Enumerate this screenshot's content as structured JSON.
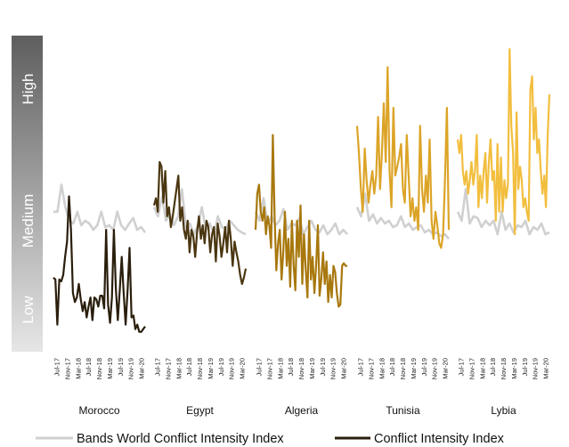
{
  "chart_data": {
    "type": "line",
    "bands": [
      "Low",
      "Medium",
      "High"
    ],
    "tick_labels": [
      "Jul-17",
      "Nov-17",
      "Mar-18",
      "Jul-18",
      "Nov-18",
      "Mar-19",
      "Jul-19",
      "Nov-19",
      "Mar-20"
    ],
    "colors": {
      "world": "#d0d0d0",
      "Morocco": "#2a1e0c",
      "Egypt": "#4a3610",
      "Algeria": "#a8780e",
      "Tunisia": "#dca427",
      "Lybia": "#f2be3e"
    },
    "legend": [
      {
        "label": "Bands World Conflict Intensity Index",
        "color": "#d0d0d0"
      },
      {
        "label": "Conflict Intensity Index",
        "color": "#2a1e0c"
      }
    ],
    "panels": [
      {
        "country": "Morocco",
        "world": [
          1.55,
          1.55,
          1.85,
          1.6,
          1.45,
          1.42,
          1.55,
          1.4,
          1.45,
          1.42,
          1.35,
          1.4,
          1.55,
          1.38,
          1.4,
          1.35,
          1.55,
          1.4,
          1.35,
          1.42,
          1.48,
          1.35,
          1.38,
          1.32
        ],
        "index": [
          0.82,
          0.8,
          0.3,
          0.8,
          0.78,
          0.85,
          1.05,
          1.22,
          1.72,
          1.35,
          0.65,
          0.55,
          0.6,
          0.75,
          0.58,
          0.45,
          0.55,
          0.38,
          0.5,
          0.6,
          0.35,
          0.6,
          0.58,
          0.5,
          0.62,
          0.62,
          0.48,
          1.35,
          0.52,
          0.32,
          0.6,
          1.35,
          0.7,
          0.35,
          0.68,
          1.05,
          0.65,
          0.3,
          0.68,
          1.15,
          0.38,
          0.4,
          0.25,
          0.3,
          0.22,
          0.22,
          0.25,
          0.28
        ]
      },
      {
        "country": "Egypt",
        "world": [
          1.6,
          1.5,
          1.72,
          1.45,
          1.52,
          1.4,
          1.5,
          1.8,
          1.38,
          1.42,
          1.3,
          1.4,
          1.6,
          1.35,
          1.42,
          1.3,
          1.5,
          1.38,
          1.36,
          1.45,
          1.4,
          1.35,
          1.32,
          1.3
        ],
        "index": [
          1.62,
          1.7,
          1.55,
          2.1,
          2.05,
          1.65,
          2.0,
          1.5,
          1.6,
          1.38,
          1.5,
          1.65,
          1.8,
          1.95,
          1.45,
          1.6,
          1.35,
          1.25,
          1.45,
          1.1,
          1.35,
          1.28,
          1.05,
          1.32,
          1.5,
          1.25,
          1.4,
          1.2,
          1.45,
          1.38,
          1.1,
          1.3,
          1.38,
          1.0,
          1.42,
          1.28,
          1.05,
          1.2,
          1.38,
          1.1,
          1.45,
          1.25,
          0.95,
          1.22,
          1.1,
          1.0,
          0.85,
          0.75,
          0.82,
          0.92
        ]
      },
      {
        "country": "Algeria",
        "world": [
          1.55,
          1.45,
          1.7,
          1.42,
          1.5,
          1.4,
          1.45,
          1.58,
          1.35,
          1.42,
          1.4,
          1.48,
          1.3,
          1.38,
          1.45,
          1.35,
          1.32,
          1.4,
          1.3,
          1.35,
          1.42,
          1.3,
          1.35,
          1.3
        ],
        "index": [
          1.35,
          1.75,
          1.85,
          1.55,
          1.45,
          1.6,
          1.3,
          1.5,
          1.4,
          1.15,
          2.4,
          1.5,
          0.9,
          1.2,
          1.35,
          0.8,
          1.1,
          1.55,
          0.95,
          1.25,
          0.72,
          1.45,
          0.95,
          0.68,
          1.45,
          1.05,
          1.62,
          0.75,
          1.3,
          0.9,
          0.6,
          1.45,
          0.8,
          1.05,
          0.65,
          0.95,
          1.4,
          0.62,
          0.8,
          1.1,
          0.75,
          1.0,
          0.55,
          0.85,
          0.6,
          0.95,
          0.88,
          0.65,
          0.5,
          0.52,
          0.95,
          0.98,
          0.95,
          0.95
        ]
      },
      {
        "country": "Tunisia",
        "world": [
          1.6,
          1.5,
          1.75,
          1.45,
          1.52,
          1.42,
          1.48,
          1.42,
          1.45,
          1.38,
          1.4,
          1.5,
          1.38,
          1.42,
          1.35,
          1.38,
          1.4,
          1.32,
          1.35,
          1.3,
          1.32,
          1.28,
          1.3,
          1.25
        ],
        "index": [
          2.5,
          2.2,
          1.8,
          1.55,
          2.25,
          1.9,
          1.65,
          1.85,
          2.0,
          1.75,
          1.95,
          2.6,
          1.8,
          2.2,
          2.75,
          2.1,
          3.15,
          2.0,
          1.6,
          2.7,
          1.95,
          2.05,
          2.15,
          2.3,
          1.8,
          1.65,
          2.4,
          1.95,
          1.5,
          1.7,
          1.45,
          1.6,
          1.35,
          2.5,
          1.8,
          1.55,
          1.95,
          1.65,
          2.35,
          1.45,
          1.25,
          1.55,
          1.4,
          1.2,
          1.15,
          1.3,
          1.9,
          2.7,
          1.35
        ]
      },
      {
        "country": "Lybia",
        "world": [
          1.55,
          1.45,
          1.8,
          1.42,
          1.5,
          1.48,
          1.38,
          1.45,
          1.4,
          1.45,
          1.3,
          1.55,
          1.35,
          1.42,
          1.32,
          1.4,
          1.38,
          1.45,
          1.3,
          1.38,
          1.35,
          1.42,
          1.3,
          1.32
        ],
        "index": [
          2.35,
          2.2,
          2.4,
          2.0,
          1.85,
          2.0,
          1.75,
          1.9,
          2.1,
          1.85,
          2.0,
          2.4,
          1.6,
          1.95,
          1.7,
          2.0,
          2.2,
          1.65,
          2.1,
          2.35,
          1.9,
          2.0,
          1.45,
          2.3,
          1.55,
          2.15,
          1.55,
          1.9,
          1.7,
          1.85,
          3.35,
          2.5,
          2.2,
          1.3,
          2.65,
          1.8,
          2.05,
          1.9,
          1.6,
          1.7,
          1.55,
          1.45,
          2.9,
          3.05,
          2.35,
          2.7,
          2.2,
          2.35,
          2.0,
          1.75,
          1.95,
          1.6,
          2.4,
          2.85
        ]
      }
    ]
  }
}
